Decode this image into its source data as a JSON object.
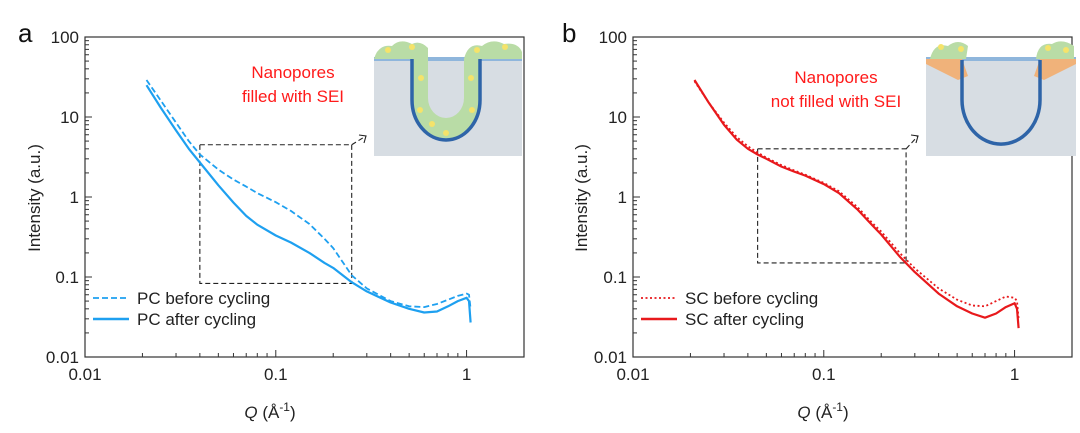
{
  "chart_data": [
    {
      "type": "line",
      "panel_label": "a",
      "xlabel": "Q (Å⁻¹)",
      "xlabel_symbol": "Q",
      "xlabel_unit": "(Å",
      "xlabel_unit_sup": "-1",
      "xlabel_unit_close": ")",
      "ylabel": "Intensity (a.u.)",
      "xscale": "log",
      "yscale": "log",
      "xlim": [
        0.01,
        2
      ],
      "ylim": [
        0.01,
        100
      ],
      "x_ticks": [
        0.01,
        0.1,
        1
      ],
      "x_tick_labels": [
        "0.01",
        "0.1",
        "1"
      ],
      "y_ticks": [
        0.01,
        0.1,
        1,
        10,
        100
      ],
      "y_tick_labels": [
        "0.01",
        "0.1",
        "1",
        "10",
        "100"
      ],
      "legend_position": "bottom-left",
      "annotation": "Nanopores filled with SEI",
      "annotation_lines": [
        "Nanopores",
        "filled with SEI"
      ],
      "annotation_color": "#ff1a1a",
      "zoom_box": {
        "x": [
          0.04,
          0.25
        ],
        "y": [
          0.083,
          4.5
        ]
      },
      "inset": "nanopores-filled-with-sei",
      "series": [
        {
          "name": "PC before cycling",
          "style": "dashed",
          "color": "#1ea0f0",
          "x": [
            0.021,
            0.025,
            0.03,
            0.035,
            0.04,
            0.05,
            0.06,
            0.07,
            0.08,
            0.1,
            0.12,
            0.15,
            0.18,
            0.2,
            0.25,
            0.3,
            0.4,
            0.5,
            0.6,
            0.7,
            0.8,
            0.9,
            1.0,
            1.03,
            1.05
          ],
          "y": [
            29,
            16,
            8.5,
            5.0,
            3.4,
            2.2,
            1.65,
            1.35,
            1.12,
            0.86,
            0.67,
            0.46,
            0.3,
            0.23,
            0.105,
            0.072,
            0.05,
            0.043,
            0.042,
            0.046,
            0.052,
            0.058,
            0.062,
            0.06,
            0.04
          ]
        },
        {
          "name": "PC after cycling",
          "style": "solid",
          "color": "#1ea0f0",
          "x": [
            0.021,
            0.025,
            0.03,
            0.035,
            0.04,
            0.05,
            0.06,
            0.07,
            0.08,
            0.1,
            0.12,
            0.15,
            0.18,
            0.2,
            0.25,
            0.3,
            0.4,
            0.5,
            0.6,
            0.7,
            0.8,
            0.9,
            1.0,
            1.03,
            1.05
          ],
          "y": [
            25,
            13,
            6.8,
            4.0,
            2.7,
            1.4,
            0.85,
            0.58,
            0.45,
            0.33,
            0.27,
            0.2,
            0.15,
            0.13,
            0.086,
            0.066,
            0.048,
            0.04,
            0.036,
            0.037,
            0.043,
            0.05,
            0.055,
            0.05,
            0.027
          ]
        }
      ]
    },
    {
      "type": "line",
      "panel_label": "b",
      "xlabel": "Q (Å⁻¹)",
      "xlabel_symbol": "Q",
      "xlabel_unit": "(Å",
      "xlabel_unit_sup": "-1",
      "xlabel_unit_close": ")",
      "ylabel": "Intensity (a.u.)",
      "xscale": "log",
      "yscale": "log",
      "xlim": [
        0.01,
        2
      ],
      "ylim": [
        0.01,
        100
      ],
      "x_ticks": [
        0.01,
        0.1,
        1
      ],
      "x_tick_labels": [
        "0.01",
        "0.1",
        "1"
      ],
      "y_ticks": [
        0.01,
        0.1,
        1,
        10,
        100
      ],
      "y_tick_labels": [
        "0.01",
        "0.1",
        "1",
        "10",
        "100"
      ],
      "legend_position": "bottom-left",
      "annotation": "Nanopores not filled with SEI",
      "annotation_lines": [
        "Nanopores",
        "not filled with SEI"
      ],
      "annotation_color": "#ff1a1a",
      "zoom_box": {
        "x": [
          0.045,
          0.27
        ],
        "y": [
          0.15,
          4.0
        ]
      },
      "inset": "nanopores-not-filled-with-sei",
      "series": [
        {
          "name": "SC before cycling",
          "style": "dotted",
          "color": "#e8191c",
          "x": [
            0.021,
            0.025,
            0.03,
            0.035,
            0.04,
            0.045,
            0.05,
            0.06,
            0.07,
            0.08,
            0.1,
            0.12,
            0.15,
            0.18,
            0.2,
            0.25,
            0.3,
            0.4,
            0.5,
            0.6,
            0.7,
            0.8,
            0.9,
            1.0,
            1.03,
            1.05
          ],
          "y": [
            28,
            15,
            8.5,
            5.6,
            4.3,
            3.6,
            3.1,
            2.5,
            2.15,
            1.9,
            1.5,
            1.18,
            0.75,
            0.47,
            0.37,
            0.2,
            0.128,
            0.072,
            0.052,
            0.044,
            0.043,
            0.05,
            0.057,
            0.055,
            0.05,
            0.03
          ]
        },
        {
          "name": "SC after cycling",
          "style": "solid",
          "color": "#e8191c",
          "x": [
            0.021,
            0.025,
            0.03,
            0.035,
            0.04,
            0.045,
            0.05,
            0.06,
            0.07,
            0.08,
            0.1,
            0.12,
            0.15,
            0.18,
            0.2,
            0.25,
            0.3,
            0.4,
            0.5,
            0.6,
            0.7,
            0.8,
            0.9,
            1.0,
            1.03,
            1.05
          ],
          "y": [
            29,
            15,
            8.0,
            5.2,
            4.0,
            3.4,
            3.0,
            2.4,
            2.08,
            1.85,
            1.45,
            1.12,
            0.7,
            0.44,
            0.34,
            0.18,
            0.115,
            0.062,
            0.043,
            0.035,
            0.031,
            0.035,
            0.042,
            0.047,
            0.04,
            0.023
          ]
        }
      ]
    }
  ]
}
